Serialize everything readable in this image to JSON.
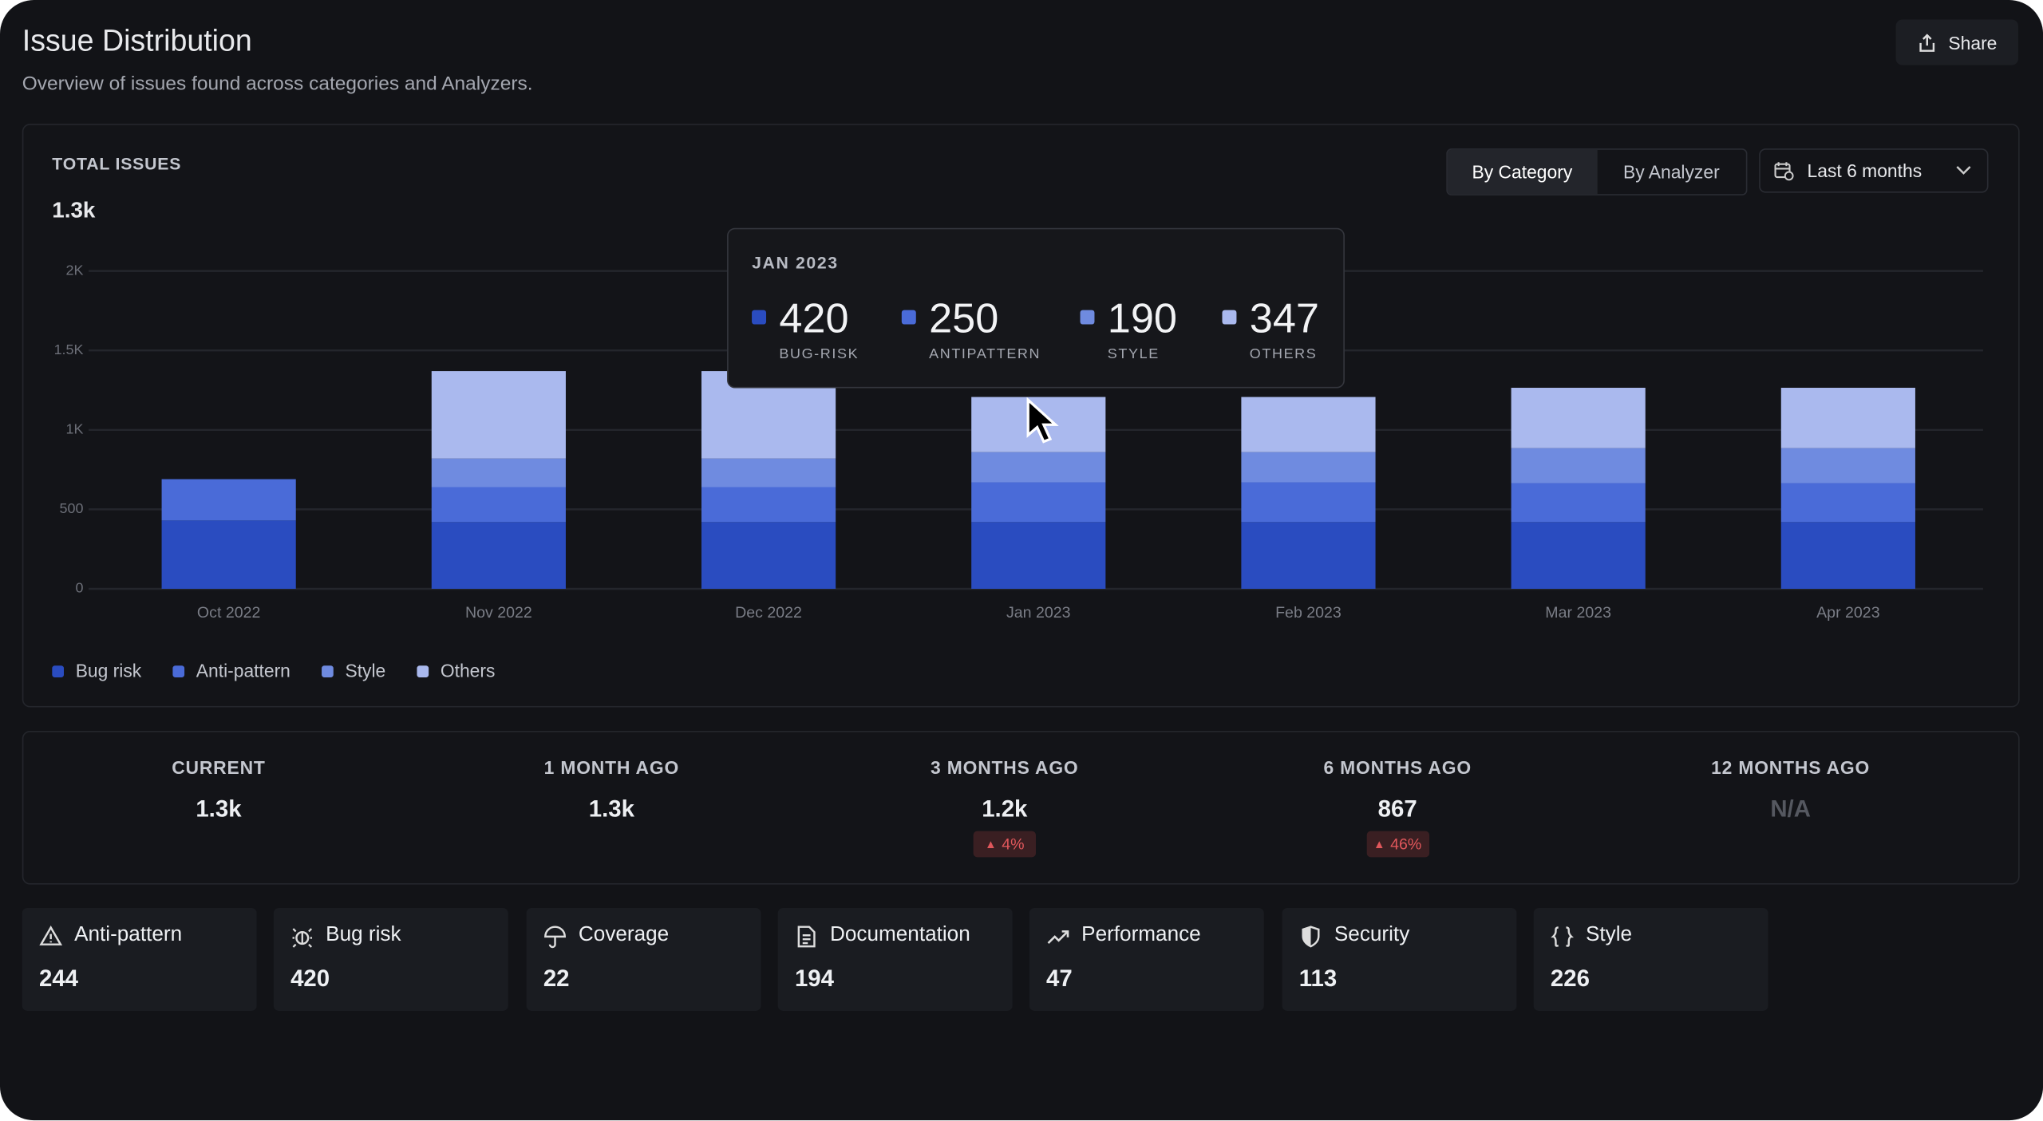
{
  "header": {
    "title": "Issue Distribution",
    "subtitle": "Overview of issues found across categories and Analyzers.",
    "share": "Share"
  },
  "controls": {
    "tabs": [
      "By Category",
      "By Analyzer"
    ],
    "active_tab": 0,
    "range": "Last 6 months"
  },
  "summary": {
    "label": "TOTAL ISSUES",
    "value": "1.3k"
  },
  "chart_data": {
    "type": "stacked_bar",
    "categories": [
      "Oct 2022",
      "Nov 2022",
      "Dec 2022",
      "Jan 2023",
      "Feb 2023",
      "Mar 2023",
      "Apr 2023"
    ],
    "series": [
      {
        "name": "Bug risk",
        "color": "#2a4cc0",
        "values": [
          430,
          420,
          420,
          420,
          420,
          420,
          420
        ]
      },
      {
        "name": "Anti-pattern",
        "color": "#4a6bd8",
        "values": [
          260,
          220,
          220,
          250,
          250,
          245,
          245
        ]
      },
      {
        "name": "Style",
        "color": "#6f8be0",
        "values": [
          null,
          180,
          180,
          190,
          190,
          220,
          220
        ]
      },
      {
        "name": "Others",
        "color": "#aab9ee",
        "values": [
          null,
          550,
          550,
          347,
          347,
          380,
          380
        ]
      }
    ],
    "ylim": [
      0,
      2000
    ],
    "yticks": [
      0,
      500,
      {
        "value": 1000,
        "label": "1K"
      },
      {
        "value": 1500,
        "label": "1.5K"
      },
      {
        "value": 2000,
        "label": "2K"
      }
    ],
    "grid": true,
    "legend": "bottom-left"
  },
  "tooltip": {
    "title": "JAN 2023",
    "items": [
      {
        "value": 420,
        "label": "BUG-RISK"
      },
      {
        "value": 250,
        "label": "ANTIPATTERN"
      },
      {
        "value": 190,
        "label": "STYLE"
      },
      {
        "value": 347,
        "label": "OTHERS"
      }
    ]
  },
  "history": [
    {
      "label": "CURRENT",
      "value": "1.3k"
    },
    {
      "label": "1 MONTH AGO",
      "value": "1.3k"
    },
    {
      "label": "3 MONTHS AGO",
      "value": "1.2k",
      "change": "4%"
    },
    {
      "label": "6 MONTHS AGO",
      "value": "867",
      "change": "46%"
    },
    {
      "label": "12 MONTHS AGO",
      "value": "N/A"
    }
  ],
  "issue_categories": [
    {
      "name": "Anti-pattern",
      "count": 244
    },
    {
      "name": "Bug risk",
      "count": 420
    },
    {
      "name": "Coverage",
      "count": 22
    },
    {
      "name": "Documentation",
      "count": 194
    },
    {
      "name": "Performance",
      "count": 47
    },
    {
      "name": "Security",
      "count": 113
    },
    {
      "name": "Style",
      "count": 226
    }
  ]
}
